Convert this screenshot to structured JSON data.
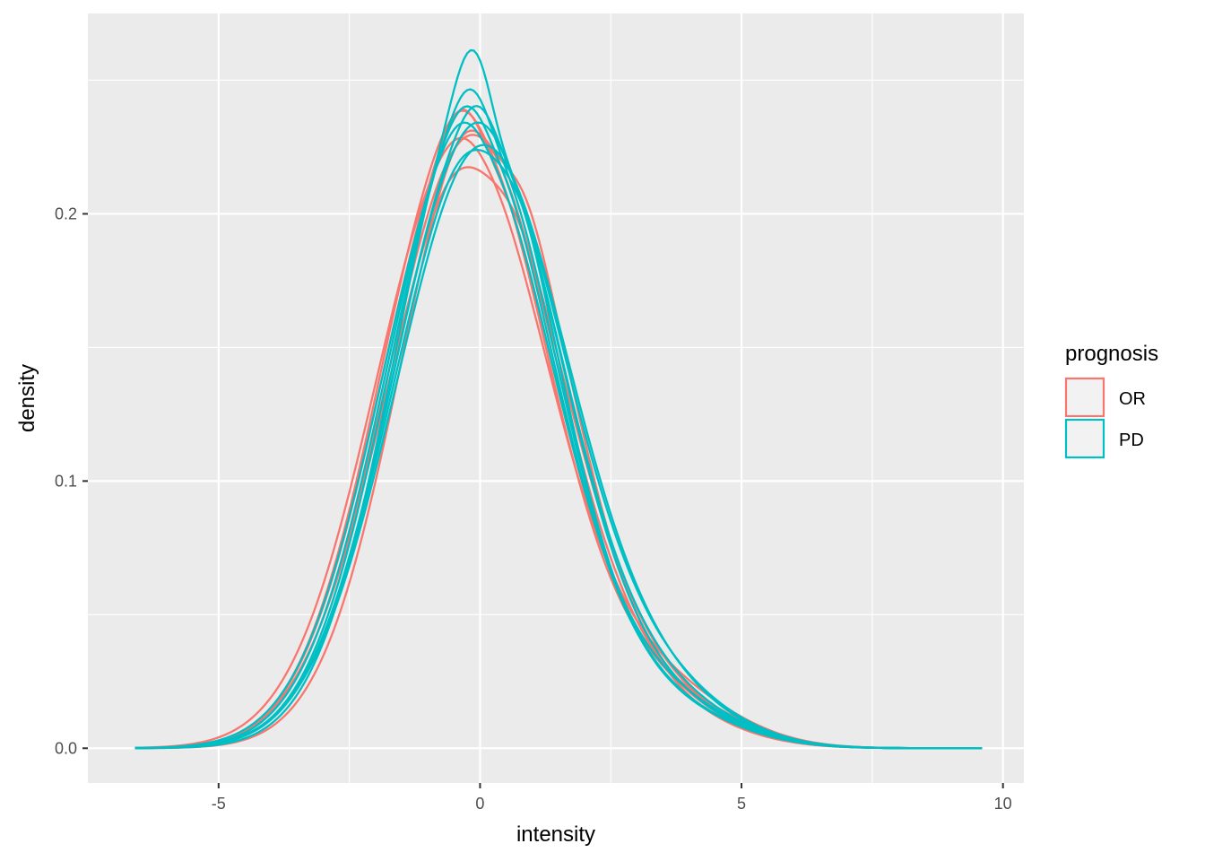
{
  "chart_data": {
    "type": "line",
    "title": "",
    "xlabel": "intensity",
    "ylabel": "density",
    "xlim": [
      -7.5,
      10.4
    ],
    "ylim": [
      -0.013,
      0.275
    ],
    "x_ticks": [
      -5,
      0,
      5,
      10
    ],
    "x_tick_labels": [
      "-5",
      "0",
      "5",
      "10"
    ],
    "y_ticks": [
      0.0,
      0.1,
      0.2
    ],
    "y_tick_labels": [
      "0.0",
      "0.1",
      "0.2"
    ],
    "grid": true,
    "legend": {
      "title": "prognosis",
      "placement": "right",
      "entries": [
        {
          "label": "OR",
          "color": "#F8766D"
        },
        {
          "label": "PD",
          "color": "#00BFC4"
        }
      ]
    },
    "x_range": [
      -6.6,
      9.6
    ],
    "series": [
      {
        "group": "OR",
        "color": "#F8766D",
        "mu": -0.15,
        "sigma": 1.62,
        "tail": 0.006,
        "bump": 0.0,
        "shift": 0.0
      },
      {
        "group": "OR",
        "color": "#F8766D",
        "mu": -0.3,
        "sigma": 1.58,
        "tail": 0.008,
        "bump": 0.004,
        "shift": -0.05
      },
      {
        "group": "OR",
        "color": "#F8766D",
        "mu": 0.05,
        "sigma": 1.55,
        "tail": 0.005,
        "bump": -0.01,
        "shift": 0.15
      },
      {
        "group": "OR",
        "color": "#F8766D",
        "mu": -0.25,
        "sigma": 1.6,
        "tail": 0.007,
        "bump": 0.008,
        "shift": -0.1
      },
      {
        "group": "OR",
        "color": "#F8766D",
        "mu": -0.1,
        "sigma": 1.66,
        "tail": 0.006,
        "bump": -0.006,
        "shift": 0.05
      },
      {
        "group": "OR",
        "color": "#F8766D",
        "mu": -0.35,
        "sigma": 1.64,
        "tail": 0.009,
        "bump": 0.002,
        "shift": 0.0
      },
      {
        "group": "PD",
        "color": "#00BFC4",
        "mu": -0.1,
        "sigma": 1.52,
        "tail": 0.006,
        "bump": 0.02,
        "shift": 0.0
      },
      {
        "group": "PD",
        "color": "#00BFC4",
        "mu": -0.05,
        "sigma": 1.6,
        "tail": 0.007,
        "bump": 0.002,
        "shift": 0.1
      },
      {
        "group": "PD",
        "color": "#00BFC4",
        "mu": -0.2,
        "sigma": 1.58,
        "tail": 0.006,
        "bump": 0.006,
        "shift": -0.05
      },
      {
        "group": "PD",
        "color": "#00BFC4",
        "mu": 0.0,
        "sigma": 1.63,
        "tail": 0.008,
        "bump": -0.004,
        "shift": 0.05
      },
      {
        "group": "PD",
        "color": "#00BFC4",
        "mu": -0.15,
        "sigma": 1.56,
        "tail": 0.006,
        "bump": 0.01,
        "shift": 0.0
      },
      {
        "group": "PD",
        "color": "#00BFC4",
        "mu": 0.05,
        "sigma": 1.65,
        "tail": 0.007,
        "bump": 0.0,
        "shift": 0.1
      },
      {
        "group": "PD",
        "color": "#00BFC4",
        "mu": -0.25,
        "sigma": 1.61,
        "tail": 0.007,
        "bump": 0.004,
        "shift": -0.1
      },
      {
        "group": "PD",
        "color": "#00BFC4",
        "mu": -0.05,
        "sigma": 1.59,
        "tail": 0.006,
        "bump": 0.008,
        "shift": 0.05
      }
    ]
  }
}
